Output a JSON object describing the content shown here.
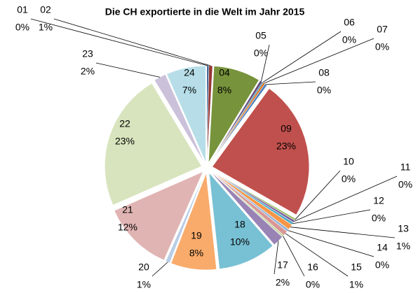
{
  "chart_data": {
    "type": "pie",
    "title": "Die CH exportierte in die Welt im Jahr 2015",
    "categories": [
      "01",
      "02",
      "04",
      "05",
      "06",
      "07",
      "08",
      "09",
      "10",
      "11",
      "12",
      "13",
      "14",
      "15",
      "16",
      "17",
      "18",
      "19",
      "20",
      "21",
      "22",
      "23",
      "24"
    ],
    "values": [
      0.3,
      0.6,
      7.8,
      0.4,
      0.2,
      0.3,
      0.4,
      23.3,
      0.3,
      0.4,
      0.4,
      0.9,
      0.4,
      0.8,
      0.3,
      1.8,
      9.7,
      7.6,
      0.7,
      11.8,
      23.0,
      2.0,
      6.6
    ],
    "value_labels": [
      "0%",
      "1%",
      "8%",
      "0%",
      "0%",
      "0%",
      "0%",
      "23%",
      "0%",
      "0%",
      "0%",
      "1%",
      "0%",
      "1%",
      "0%",
      "2%",
      "10%",
      "8%",
      "1%",
      "12%",
      "23%",
      "2%",
      "7%"
    ],
    "colors": [
      "#1f497d",
      "#943634",
      "#77933c",
      "#5f497a",
      "#31849b",
      "#e46c0a",
      "#4f81bd",
      "#c0504d",
      "#9bbb59",
      "#8064a2",
      "#4bacc6",
      "#f79646",
      "#95b3d7",
      "#d99694",
      "#c3d69b",
      "#9983b5",
      "#78c0d4",
      "#f9ab6b",
      "#b9cde5",
      "#e0b4b3",
      "#d7e4bd",
      "#ccc1da",
      "#b7dee8"
    ]
  }
}
